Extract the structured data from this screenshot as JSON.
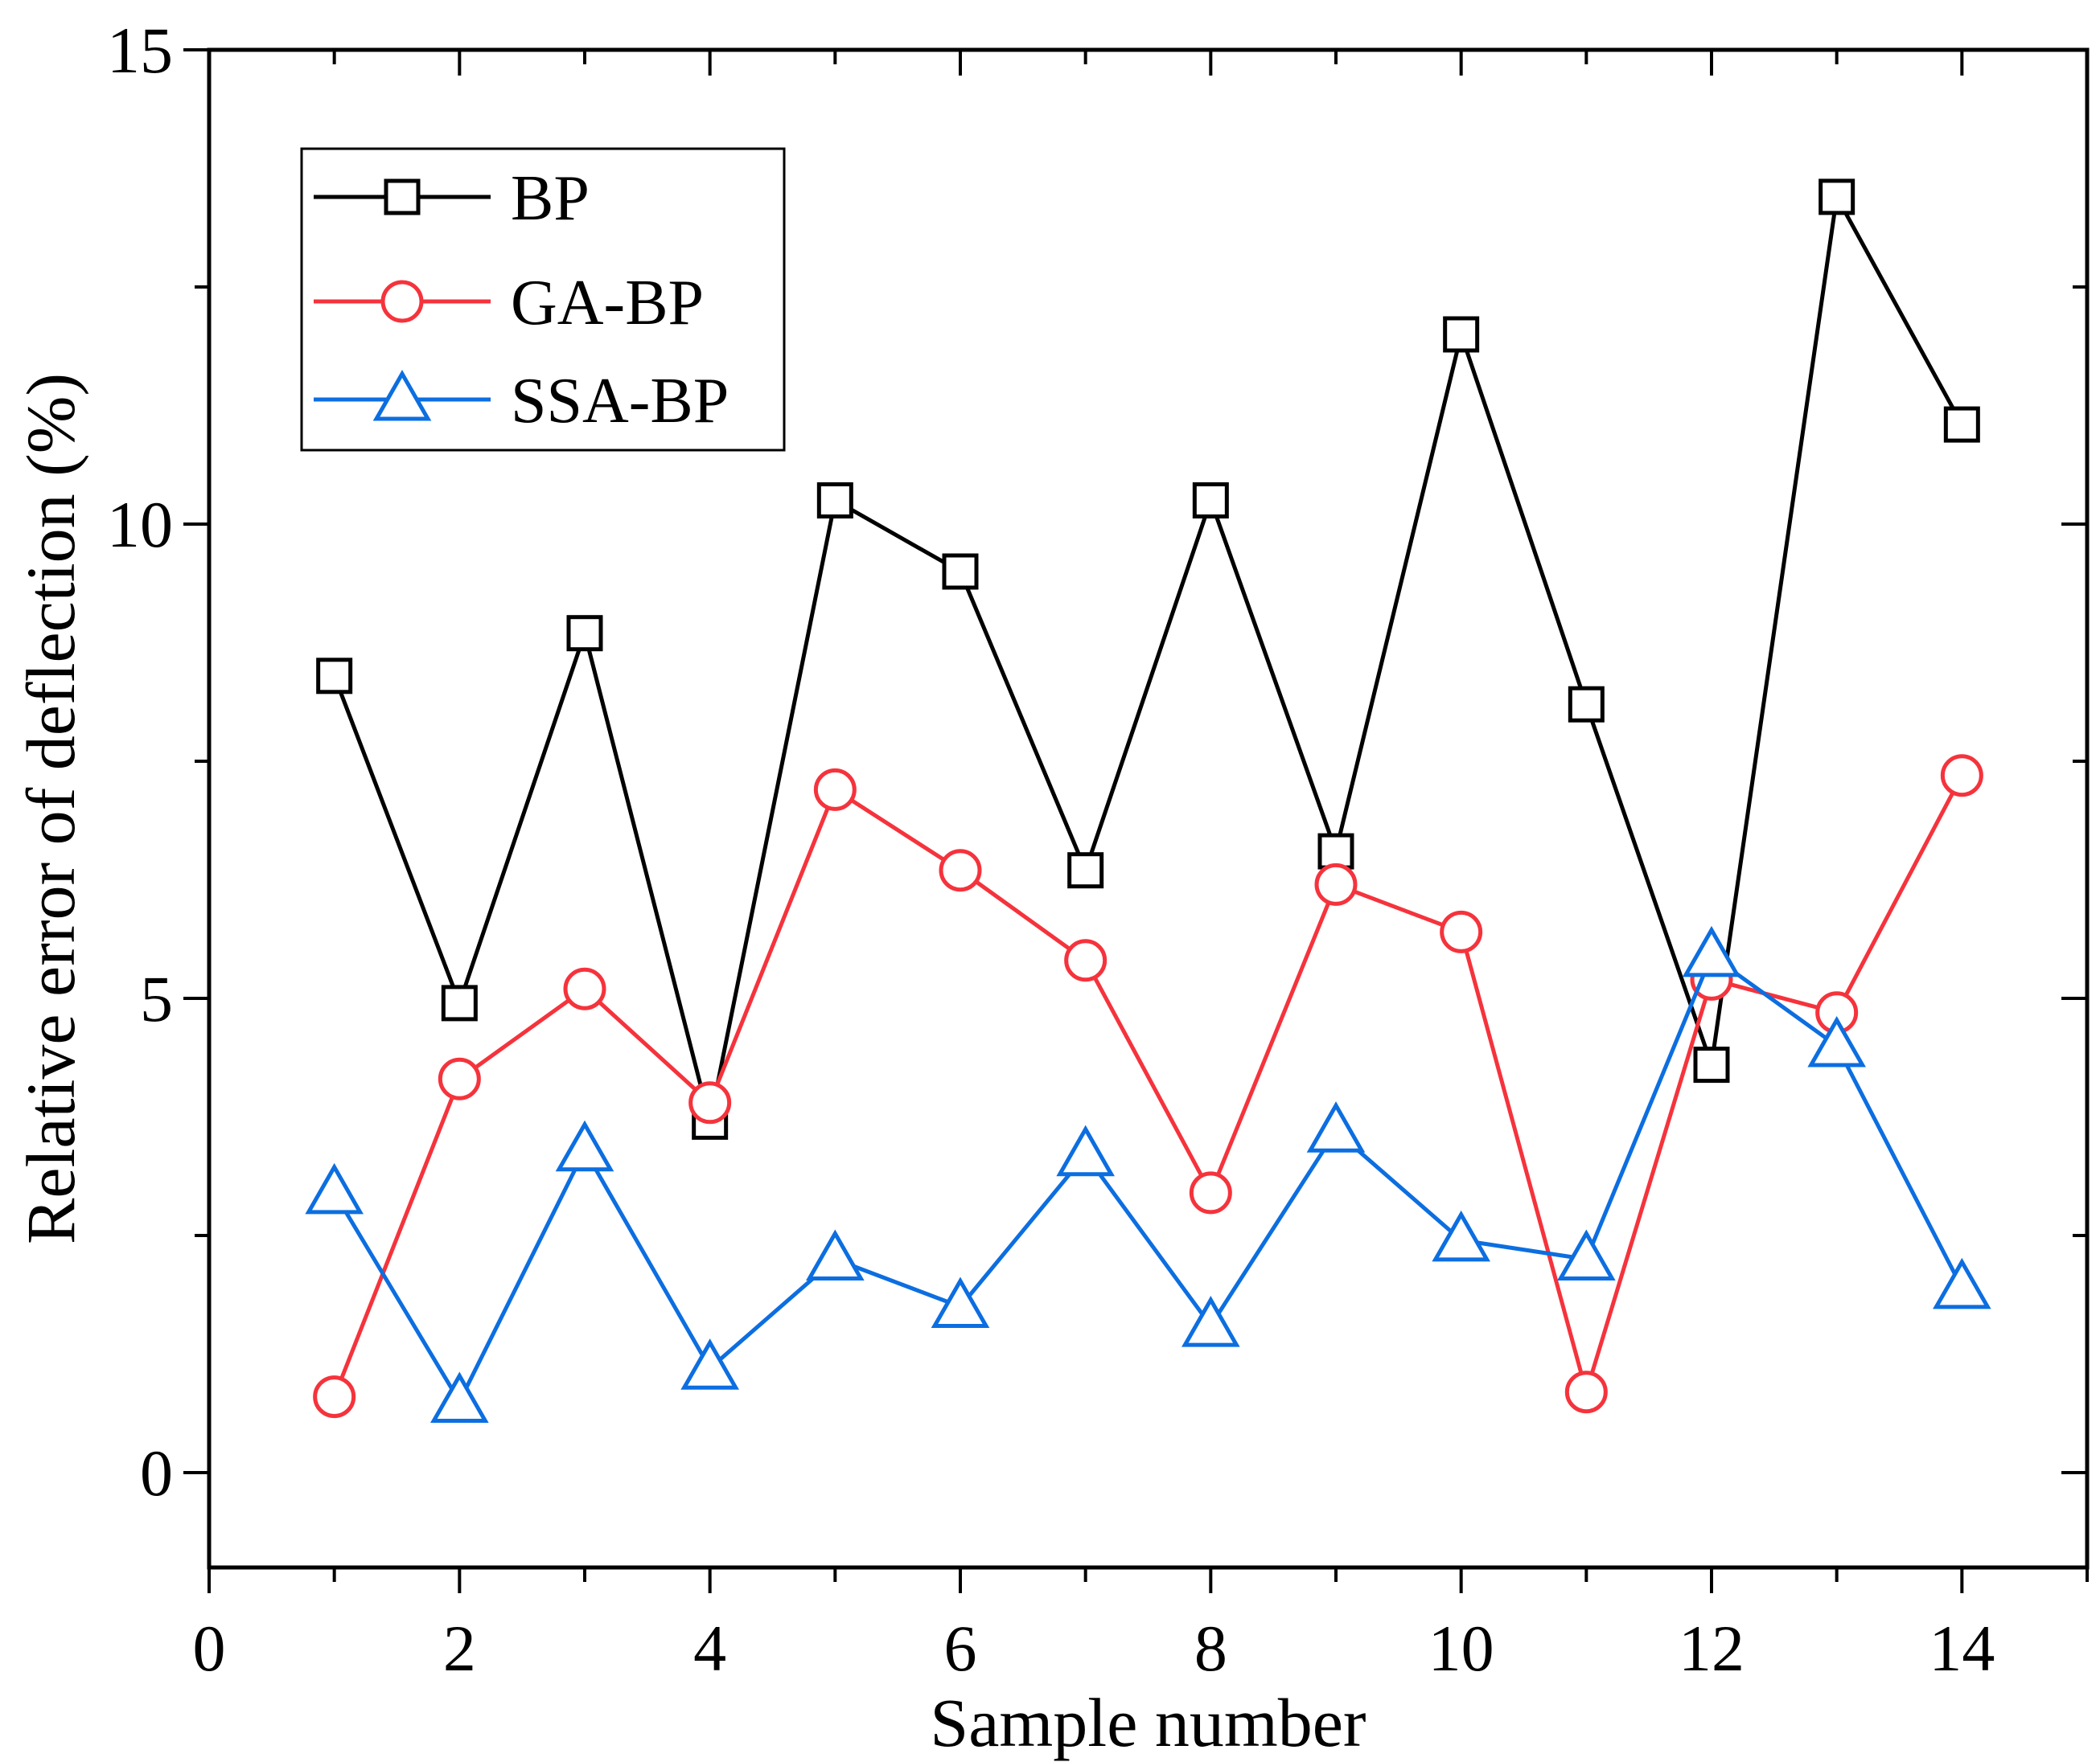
{
  "chart_data": {
    "type": "line",
    "title": "",
    "xlabel": "Sample number",
    "ylabel": "Relative error of deflection (%)",
    "xlim": [
      0,
      15
    ],
    "ylim": [
      -1,
      15
    ],
    "x_ticks": [
      0,
      2,
      4,
      6,
      8,
      10,
      12,
      14
    ],
    "y_ticks": [
      0,
      5,
      10,
      15
    ],
    "legend_position": "top-left",
    "x": [
      1,
      2,
      3,
      4,
      5,
      6,
      7,
      8,
      9,
      10,
      11,
      12,
      13,
      14
    ],
    "series": [
      {
        "name": "BP",
        "marker": "square",
        "color": "#000000",
        "values": [
          8.4,
          4.95,
          8.85,
          3.7,
          10.25,
          9.5,
          6.35,
          10.25,
          6.55,
          12.0,
          8.1,
          4.3,
          13.45,
          11.05
        ]
      },
      {
        "name": "GA-BP",
        "marker": "circle",
        "color": "#f5333c",
        "values": [
          0.8,
          4.15,
          5.1,
          3.9,
          7.2,
          6.35,
          5.4,
          2.95,
          6.2,
          5.7,
          0.85,
          5.2,
          4.85,
          7.35
        ]
      },
      {
        "name": "SSA-BP",
        "marker": "triangle",
        "color": "#0c6ee0",
        "values": [
          2.95,
          0.75,
          3.4,
          1.1,
          2.25,
          1.75,
          3.35,
          1.55,
          3.6,
          2.45,
          2.25,
          5.45,
          4.5,
          1.95
        ]
      }
    ]
  }
}
